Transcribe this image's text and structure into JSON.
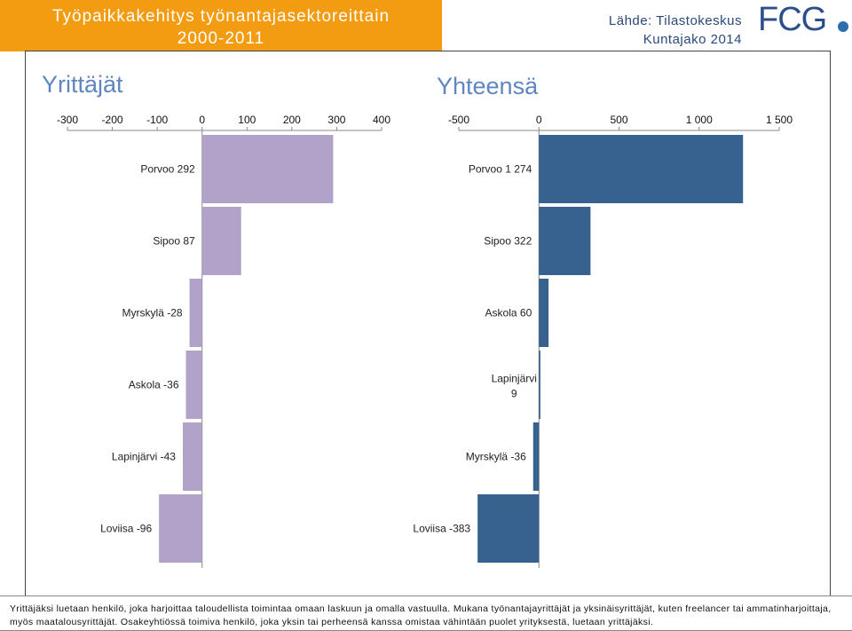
{
  "header": {
    "title_line1": "Työpaikkakehitys työnantajasektoreittain",
    "title_line2": "2000-2011",
    "source_line1": "Lähde: Tilastokeskus",
    "source_line2": "Kuntajako 2014",
    "logo_text": "FCG"
  },
  "colors": {
    "title_bg": "#f39c12",
    "left_bars": "#b0a2c8",
    "right_bars": "#37618f",
    "panel_title": "#5f86c0"
  },
  "chart_data": [
    {
      "type": "bar",
      "orientation": "horizontal",
      "title": "Yrittäjät",
      "xlim": [
        -300,
        400
      ],
      "ticks": [
        -300,
        -200,
        -100,
        0,
        100,
        200,
        300,
        400
      ],
      "tick_labels": [
        "-300",
        "-200",
        "-100",
        "0",
        "100",
        "200",
        "300",
        "400"
      ],
      "categories": [
        "Porvoo",
        "Sipoo",
        "Myrskylä",
        "Askola",
        "Lapinjärvi",
        "Loviisa"
      ],
      "values": [
        292,
        87,
        -28,
        -36,
        -43,
        -96
      ],
      "data_labels": [
        "Porvoo 292",
        "Sipoo 87",
        "Myrskylä -28",
        "Askola -36",
        "Lapinjärvi -43",
        "Loviisa -96"
      ]
    },
    {
      "type": "bar",
      "orientation": "horizontal",
      "title": "Yhteensä",
      "xlim": [
        -500,
        1500
      ],
      "ticks": [
        -500,
        0,
        500,
        1000,
        1500
      ],
      "tick_labels": [
        "-500",
        "0",
        "500",
        "1 000",
        "1 500"
      ],
      "categories": [
        "Porvoo",
        "Sipoo",
        "Askola",
        "Lapinjärvi",
        "Myrskylä",
        "Loviisa"
      ],
      "values": [
        1274,
        322,
        60,
        9,
        -36,
        -383
      ],
      "data_labels": [
        "Porvoo 1 274",
        "Sipoo 322",
        "Askola 60",
        "Lapinjärvi 9",
        "Myrskylä -36",
        "Loviisa -383"
      ]
    }
  ],
  "footnote": {
    "text": "Yrittäjäksi luetaan henkilö, joka harjoittaa taloudellista toimintaa omaan laskuun ja omalla vastuulla. Mukana työnantajayrittäjät ja yksinäisyrittäjät, kuten freelancer tai ammatinharjoittaja, myös maatalousyrittäjät. Osakeyhtiössä toimiva henkilö, joka yksin tai perheensä kanssa omistaa vähintään puolet yrityksestä, luetaan yrittäjäksi."
  }
}
